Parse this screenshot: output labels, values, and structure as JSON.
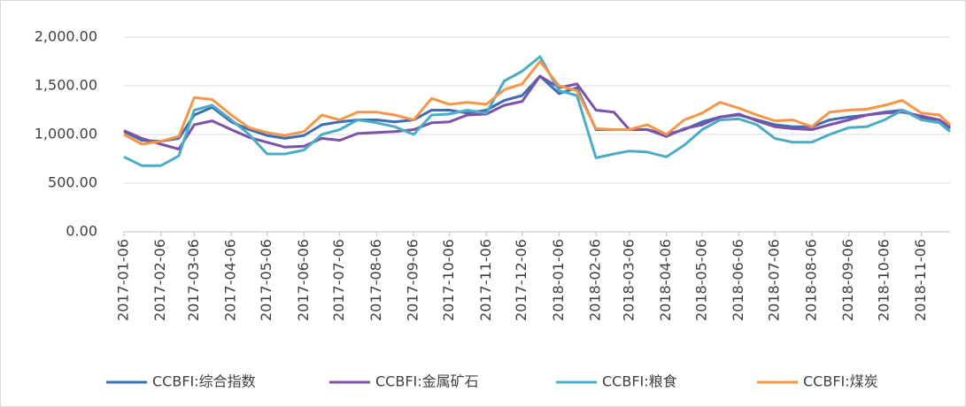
{
  "chart_data": {
    "type": "line",
    "x": [
      "2017-01-06",
      "2017-01-21",
      "2017-02-06",
      "2017-02-21",
      "2017-03-06",
      "2017-03-21",
      "2017-04-06",
      "2017-04-21",
      "2017-05-06",
      "2017-05-21",
      "2017-06-06",
      "2017-06-21",
      "2017-07-06",
      "2017-07-21",
      "2017-08-06",
      "2017-08-21",
      "2017-09-06",
      "2017-09-21",
      "2017-10-06",
      "2017-10-21",
      "2017-11-06",
      "2017-11-21",
      "2017-12-06",
      "2017-12-21",
      "2018-01-06",
      "2018-01-21",
      "2018-02-06",
      "2018-02-21",
      "2018-03-06",
      "2018-03-21",
      "2018-04-06",
      "2018-04-21",
      "2018-05-06",
      "2018-05-21",
      "2018-06-06",
      "2018-06-21",
      "2018-07-06",
      "2018-07-21",
      "2018-08-06",
      "2018-08-21",
      "2018-09-06",
      "2018-09-21",
      "2018-10-06",
      "2018-10-21",
      "2018-11-06",
      "2018-11-21",
      "2018-11-30"
    ],
    "series": [
      {
        "name": "CCBFI:综合指数",
        "color": "#3e6db5",
        "values": [
          1030,
          940,
          930,
          960,
          1200,
          1280,
          1130,
          1050,
          990,
          960,
          990,
          1100,
          1130,
          1150,
          1150,
          1130,
          1150,
          1250,
          1250,
          1220,
          1250,
          1350,
          1400,
          1600,
          1420,
          1480,
          1050,
          1050,
          1050,
          1050,
          1000,
          1050,
          1130,
          1180,
          1200,
          1150,
          1100,
          1080,
          1080,
          1150,
          1180,
          1200,
          1230,
          1250,
          1170,
          1150,
          1060
        ]
      },
      {
        "name": "CCBFI:金属矿石",
        "color": "#7b52a8",
        "values": [
          1040,
          960,
          900,
          850,
          1100,
          1140,
          1050,
          970,
          920,
          870,
          880,
          960,
          940,
          1010,
          1020,
          1030,
          1050,
          1120,
          1130,
          1200,
          1210,
          1300,
          1340,
          1600,
          1480,
          1520,
          1250,
          1230,
          1050,
          1050,
          980,
          1060,
          1100,
          1180,
          1210,
          1140,
          1080,
          1060,
          1050,
          1100,
          1150,
          1200,
          1220,
          1230,
          1190,
          1150,
          1080
        ]
      },
      {
        "name": "CCBFI:粮食",
        "color": "#4bacc6",
        "values": [
          770,
          680,
          680,
          780,
          1250,
          1300,
          1150,
          1000,
          800,
          800,
          840,
          1000,
          1050,
          1150,
          1120,
          1080,
          1000,
          1200,
          1210,
          1250,
          1220,
          1550,
          1650,
          1800,
          1450,
          1400,
          760,
          800,
          830,
          820,
          770,
          890,
          1050,
          1150,
          1160,
          1100,
          960,
          920,
          920,
          1000,
          1070,
          1080,
          1150,
          1250,
          1150,
          1120,
          1030
        ]
      },
      {
        "name": "CCBFI:煤炭",
        "color": "#f79646",
        "values": [
          1000,
          900,
          930,
          980,
          1380,
          1360,
          1200,
          1070,
          1020,
          990,
          1030,
          1200,
          1150,
          1230,
          1230,
          1200,
          1150,
          1370,
          1310,
          1330,
          1310,
          1460,
          1520,
          1750,
          1500,
          1450,
          1060,
          1050,
          1050,
          1100,
          1000,
          1150,
          1220,
          1330,
          1270,
          1200,
          1140,
          1150,
          1080,
          1230,
          1250,
          1260,
          1300,
          1350,
          1220,
          1200,
          1100
        ]
      }
    ],
    "xlim": [
      "2017-01-06",
      "2018-11-30"
    ],
    "xticks": [
      "2017-01-06",
      "2017-02-06",
      "2017-03-06",
      "2017-04-06",
      "2017-05-06",
      "2017-06-06",
      "2017-07-06",
      "2017-08-06",
      "2017-09-06",
      "2017-10-06",
      "2017-11-06",
      "2017-12-06",
      "2018-01-06",
      "2018-02-06",
      "2018-03-06",
      "2018-04-06",
      "2018-05-06",
      "2018-06-06",
      "2018-07-06",
      "2018-08-06",
      "2018-09-06",
      "2018-10-06",
      "2018-11-06"
    ],
    "ylim": [
      0,
      2000
    ],
    "yticks": [
      {
        "value": 0,
        "label": "0.00"
      },
      {
        "value": 500,
        "label": "500.00"
      },
      {
        "value": 1000,
        "label": "1,000.00"
      },
      {
        "value": 1500,
        "label": "1,500.00"
      },
      {
        "value": 2000,
        "label": "2,000.00"
      }
    ],
    "grid": true,
    "legend": "bottom"
  }
}
